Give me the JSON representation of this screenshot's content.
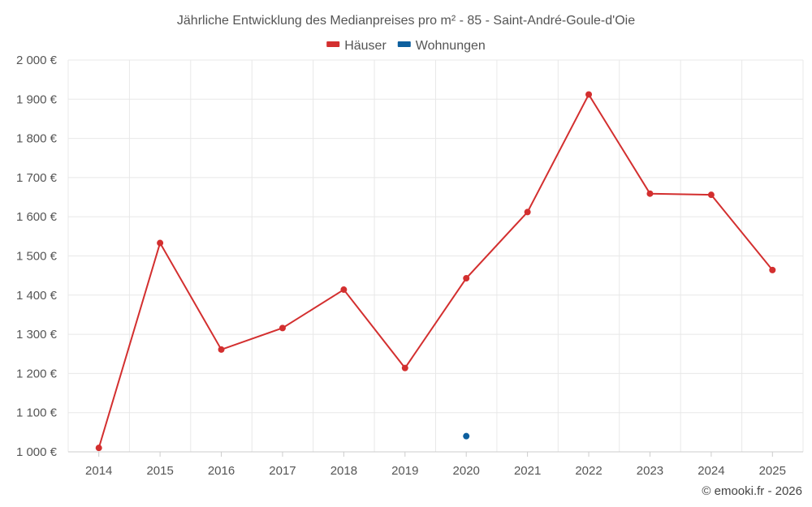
{
  "chart_data": {
    "type": "line",
    "title": "Jährliche Entwicklung des Medianpreises pro m² - 85 - Saint-André-Goule-d'Oie",
    "categories": [
      "2014",
      "2015",
      "2016",
      "2017",
      "2018",
      "2019",
      "2020",
      "2021",
      "2022",
      "2023",
      "2024",
      "2025"
    ],
    "series": [
      {
        "name": "Häuser",
        "color": "#d32f2f",
        "values": [
          1010,
          1533,
          1261,
          1316,
          1414,
          1214,
          1443,
          1612,
          1912,
          1659,
          1656,
          1464
        ]
      },
      {
        "name": "Wohnungen",
        "color": "#0d5f9e",
        "values": [
          null,
          null,
          null,
          null,
          null,
          null,
          1040,
          null,
          null,
          null,
          null,
          null
        ]
      }
    ],
    "ylim": [
      1000,
      2000
    ],
    "yticks": [
      1000,
      1100,
      1200,
      1300,
      1400,
      1500,
      1600,
      1700,
      1800,
      1900,
      2000
    ],
    "ytick_labels": [
      "1 000 €",
      "1 100 €",
      "1 200 €",
      "1 300 €",
      "1 400 €",
      "1 500 €",
      "1 600 €",
      "1 700 €",
      "1 800 €",
      "1 900 €",
      "2 000 €"
    ],
    "xlabel": "",
    "ylabel": "",
    "grid": true,
    "legend_position": "top-center"
  },
  "credit": "© emooki.fr - 2026"
}
